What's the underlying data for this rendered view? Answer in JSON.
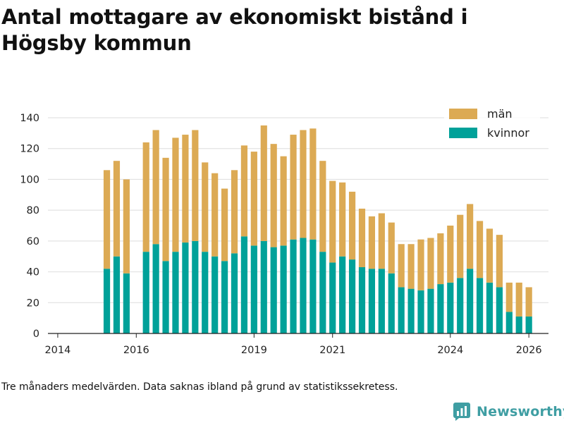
{
  "title": "Antal mottagare av ekonomiskt bistånd i Högsby kommun",
  "footnote": "Tre månaders medelvärden. Data saknas ibland på grund av statistikssekretess.",
  "brand": {
    "name": "Newsworthy",
    "icon": "newsworthy-logo-icon"
  },
  "colors": {
    "kvinnor": "#00a199",
    "man": "#dcaa54",
    "grid": "#dedede",
    "axis": "#222222"
  },
  "chart_data": {
    "type": "bar",
    "stacked": true,
    "title": "Antal mottagare av ekonomiskt bistånd i Högsby kommun",
    "xlabel": "",
    "ylabel": "",
    "ylim": [
      0,
      140
    ],
    "yticks": [
      0,
      20,
      40,
      60,
      80,
      100,
      120,
      140
    ],
    "xlim": [
      2013.75,
      2026.5
    ],
    "xticks": [
      2014,
      2016,
      2019,
      2021,
      2024,
      2026
    ],
    "legend": {
      "position": "top-right",
      "entries": [
        "män",
        "kvinnor"
      ]
    },
    "x": [
      2015.25,
      2015.5,
      2015.75,
      2016.25,
      2016.5,
      2016.75,
      2017.0,
      2017.25,
      2017.5,
      2017.75,
      2018.0,
      2018.25,
      2018.5,
      2018.75,
      2019.0,
      2019.25,
      2019.5,
      2019.75,
      2020.0,
      2020.25,
      2020.5,
      2020.75,
      2021.0,
      2021.25,
      2021.5,
      2021.75,
      2022.0,
      2022.25,
      2022.5,
      2022.75,
      2023.0,
      2023.25,
      2023.5,
      2023.75,
      2024.0,
      2024.25,
      2024.5,
      2024.75,
      2025.0,
      2025.25,
      2025.5,
      2025.75,
      2026.0
    ],
    "series": [
      {
        "name": "kvinnor",
        "color": "#00a199",
        "values": [
          42,
          50,
          39,
          53,
          58,
          47,
          53,
          59,
          60,
          53,
          50,
          47,
          52,
          63,
          57,
          60,
          56,
          57,
          61,
          62,
          61,
          53,
          46,
          50,
          48,
          43,
          42,
          42,
          39,
          30,
          29,
          28,
          29,
          32,
          33,
          36,
          42,
          36,
          33,
          30,
          14,
          11,
          11
        ]
      },
      {
        "name": "män",
        "color": "#dcaa54",
        "values": [
          64,
          62,
          61,
          71,
          74,
          67,
          74,
          70,
          72,
          58,
          54,
          47,
          54,
          59,
          61,
          75,
          67,
          58,
          68,
          70,
          72,
          59,
          53,
          48,
          44,
          38,
          34,
          36,
          33,
          28,
          29,
          33,
          33,
          33,
          37,
          41,
          42,
          37,
          35,
          34,
          19,
          22,
          19
        ]
      }
    ]
  }
}
